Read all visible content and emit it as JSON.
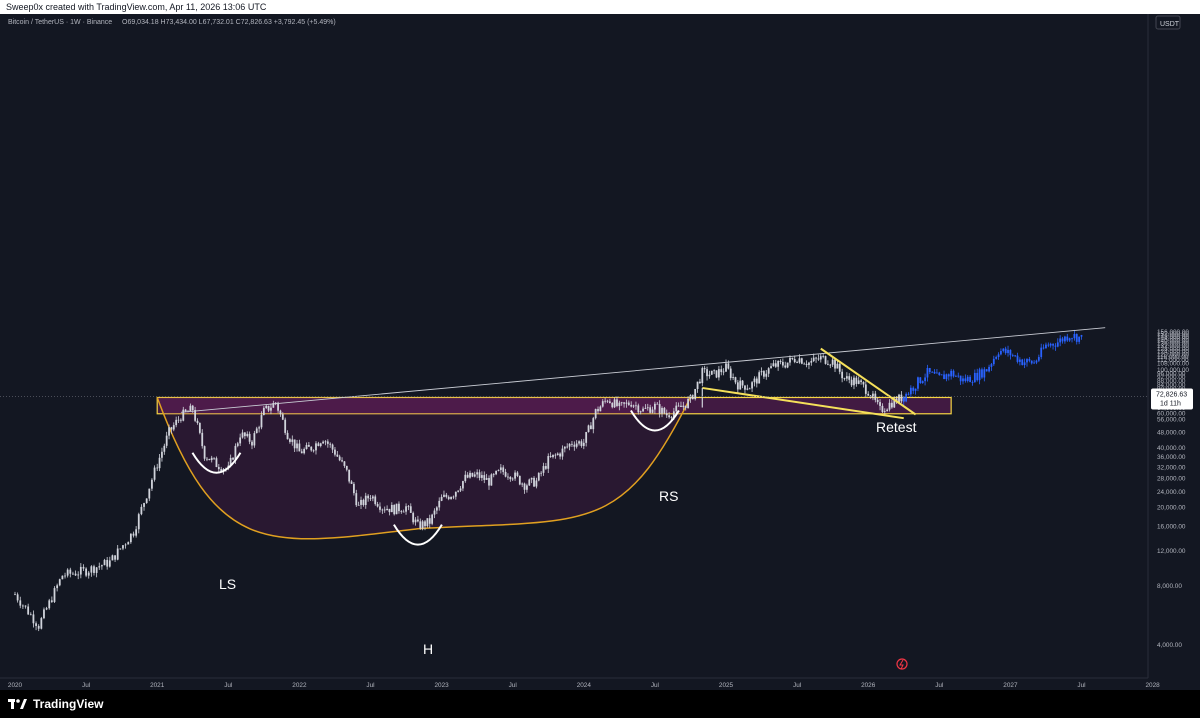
{
  "header": {
    "credit": "Sweep0x created with TradingView.com, Apr 11, 2026 13:06 UTC"
  },
  "footer": {
    "brand": "TradingView"
  },
  "colors": {
    "background": "#131722",
    "candle": "#d1d4dc",
    "projection": "#2962ff",
    "zone_fill": "#7b1f6a",
    "zone_border": "#f5d442",
    "wedge": "#f5e05a",
    "trendline": "#c9ccd4",
    "cup": "#e0a020",
    "axis_text": "#b2b5be"
  },
  "chart_data": {
    "type": "line",
    "symbol_line": "Bitcoin / TetherUS · 1W · Binance",
    "ohlc": "O69,034.18 H73,434.00 L67,732.01 C72,826.63 +3,792.45 (+5.49%)",
    "currency": "USDT",
    "last_price_label": "72,826.63",
    "countdown_label": "1d 11h",
    "log_scale": true,
    "x_range": [
      "2020-01",
      "2028-01"
    ],
    "y_range": [
      4000,
      160000
    ],
    "x_tick_labels": [
      "2020",
      "Jul",
      "2021",
      "Jul",
      "2022",
      "Jul",
      "2023",
      "Jul",
      "2024",
      "Jul",
      "2025",
      "Jul",
      "2026",
      "Jul",
      "2027",
      "Jul",
      "2028"
    ],
    "y_tick_labels": [
      "4,000.00",
      "8,000.00",
      "12,000.00",
      "16,000.00",
      "20,000.00",
      "24,000.00",
      "28,000.00",
      "32,000.00",
      "36,000.00",
      "40,000.00",
      "48,000.00",
      "56,000.00",
      "60,000.00",
      "64,000.00",
      "68,000.00",
      "76,000.00",
      "80,000.00",
      "84,000.00",
      "88,000.00",
      "92,000.00",
      "96,000.00",
      "100,000.00",
      "108,000.00",
      "112,000.00",
      "116,000.00",
      "120,000.00",
      "124,000.00",
      "128,000.00",
      "132,000.00",
      "136,000.00",
      "140,000.00",
      "144,000.00",
      "148,000.00",
      "152,000.00",
      "156,000.00"
    ],
    "series": [
      {
        "kind": "price",
        "points": [
          [
            "2020-01",
            7200
          ],
          [
            "2020-03",
            5000
          ],
          [
            "2020-05",
            9000
          ],
          [
            "2020-07",
            9500
          ],
          [
            "2020-09",
            10500
          ],
          [
            "2020-11",
            15000
          ],
          [
            "2021-01",
            33000
          ],
          [
            "2021-02",
            48000
          ],
          [
            "2021-03",
            58000
          ],
          [
            "2021-04",
            63000
          ],
          [
            "2021-05",
            37000
          ],
          [
            "2021-06",
            33000
          ],
          [
            "2021-07",
            31000
          ],
          [
            "2021-08",
            47000
          ],
          [
            "2021-09",
            43000
          ],
          [
            "2021-10",
            61000
          ],
          [
            "2021-11",
            68000
          ],
          [
            "2021-12",
            47000
          ],
          [
            "2022-01",
            38000
          ],
          [
            "2022-02",
            40000
          ],
          [
            "2022-03",
            45000
          ],
          [
            "2022-04",
            38000
          ],
          [
            "2022-05",
            30000
          ],
          [
            "2022-06",
            20000
          ],
          [
            "2022-07",
            23000
          ],
          [
            "2022-08",
            20000
          ],
          [
            "2022-09",
            19500
          ],
          [
            "2022-10",
            20000
          ],
          [
            "2022-11",
            16000
          ],
          [
            "2022-12",
            16800
          ],
          [
            "2023-01",
            22000
          ],
          [
            "2023-02",
            23500
          ],
          [
            "2023-03",
            28000
          ],
          [
            "2023-04",
            29000
          ],
          [
            "2023-05",
            27000
          ],
          [
            "2023-06",
            30500
          ],
          [
            "2023-07",
            29200
          ],
          [
            "2023-08",
            26000
          ],
          [
            "2023-09",
            27000
          ],
          [
            "2023-10",
            34500
          ],
          [
            "2023-11",
            37700
          ],
          [
            "2023-12",
            42500
          ],
          [
            "2024-01",
            42500
          ],
          [
            "2024-02",
            61000
          ],
          [
            "2024-03",
            71000
          ],
          [
            "2024-04",
            64000
          ],
          [
            "2024-05",
            68000
          ],
          [
            "2024-06",
            62000
          ],
          [
            "2024-07",
            65000
          ],
          [
            "2024-08",
            59000
          ],
          [
            "2024-09",
            63000
          ],
          [
            "2024-10",
            70000
          ],
          [
            "2024-11",
            96000
          ],
          [
            "2024-12",
            94000
          ],
          [
            "2025-01",
            102000
          ],
          [
            "2025-02",
            84000
          ],
          [
            "2025-03",
            82000
          ],
          [
            "2025-04",
            94000
          ],
          [
            "2025-05",
            104000
          ],
          [
            "2025-06",
            107000
          ],
          [
            "2025-07",
            115000
          ],
          [
            "2025-08",
            108000
          ],
          [
            "2025-09",
            114000
          ],
          [
            "2025-10",
            110000
          ],
          [
            "2025-11",
            90000
          ],
          [
            "2025-12",
            87000
          ],
          [
            "2026-01",
            78000
          ],
          [
            "2026-02",
            62000
          ],
          [
            "2026-03",
            68000
          ],
          [
            "2026-04",
            72826
          ]
        ]
      },
      {
        "kind": "projection",
        "points": [
          [
            "2026-04",
            72826
          ],
          [
            "2026-05",
            84000
          ],
          [
            "2026-06",
            96000
          ],
          [
            "2026-07",
            90000
          ],
          [
            "2026-08",
            96000
          ],
          [
            "2026-09",
            88000
          ],
          [
            "2026-10",
            92000
          ],
          [
            "2026-11",
            100000
          ],
          [
            "2026-12",
            125000
          ],
          [
            "2027-01",
            120000
          ],
          [
            "2027-02",
            110000
          ],
          [
            "2027-03",
            108000
          ],
          [
            "2027-04",
            132000
          ],
          [
            "2027-05",
            138000
          ],
          [
            "2027-06",
            150000
          ],
          [
            "2027-07",
            144000
          ]
        ]
      }
    ],
    "annotations": {
      "labels": [
        "LS",
        "H",
        "RS",
        "Retest"
      ]
    }
  }
}
